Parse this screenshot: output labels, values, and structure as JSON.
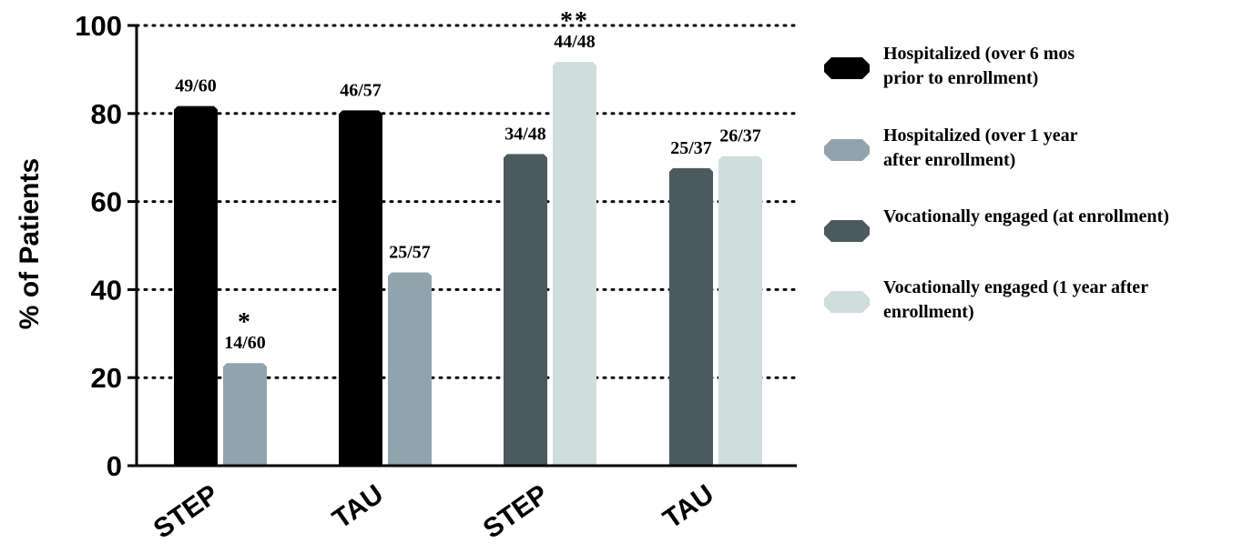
{
  "chart_data": {
    "type": "bar",
    "ylabel": "% of Patients",
    "ylim": [
      0,
      100
    ],
    "yticks": [
      "0",
      "20",
      "40",
      "60",
      "80",
      "100"
    ],
    "grid": "horizontal dotted",
    "legend_position": "right",
    "categories": [
      "STEP",
      "TAU",
      "STEP",
      "TAU"
    ],
    "series": [
      {
        "name": "Hospitalized (over 6 mos prior to enrollment)",
        "color": "#000000",
        "values": [
          81.7,
          80.7,
          null,
          null
        ],
        "labels": [
          "49/60",
          "46/57",
          "",
          ""
        ],
        "annotations": [
          "",
          "",
          "",
          ""
        ]
      },
      {
        "name": "Hospitalized (over 1 year after enrollment)",
        "color": "#90a4ae",
        "values": [
          23.3,
          43.9,
          null,
          null
        ],
        "labels": [
          "14/60",
          "25/57",
          "",
          ""
        ],
        "annotations": [
          "*",
          "",
          "",
          ""
        ]
      },
      {
        "name": "Vocationally engaged (at enrollment)",
        "color": "#4b5a5f",
        "values": [
          null,
          null,
          70.8,
          67.6
        ],
        "labels": [
          "",
          "",
          "34/48",
          "25/37"
        ],
        "annotations": [
          "",
          "",
          "",
          ""
        ]
      },
      {
        "name": "Vocationally engaged (1 year after enrollment)",
        "color": "#cfdddd",
        "values": [
          null,
          null,
          91.7,
          70.3
        ],
        "labels": [
          "",
          "",
          "44/48",
          "26/37"
        ],
        "annotations": [
          "",
          "",
          "**",
          ""
        ]
      }
    ],
    "legend": [
      {
        "lines": [
          "Hospitalized (over 6 mos",
          "prior to enrollment)"
        ],
        "color": "#000000"
      },
      {
        "lines": [
          "Hospitalized (over 1 year",
          "after enrollment)"
        ],
        "color": "#90a4ae"
      },
      {
        "lines": [
          "Vocationally engaged (at enrollment)"
        ],
        "color": "#4b5a5f"
      },
      {
        "lines": [
          "Vocationally engaged (1 year after",
          "enrollment)"
        ],
        "color": "#cfdddd"
      }
    ]
  }
}
